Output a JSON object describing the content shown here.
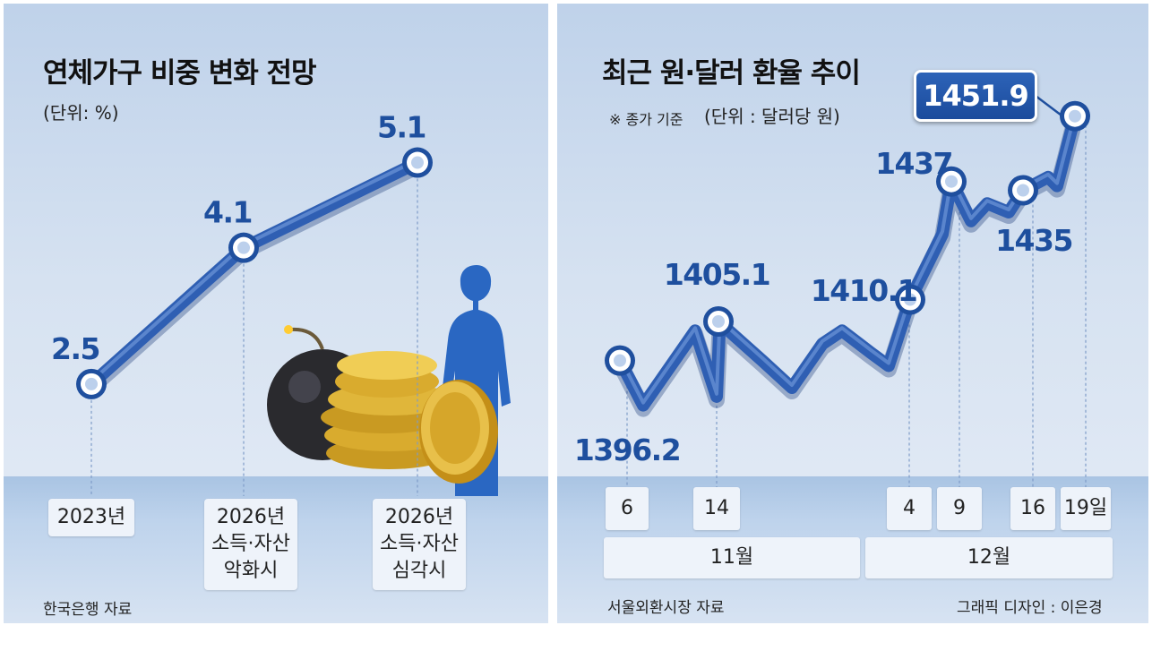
{
  "left": {
    "title": "연체가구 비중 변화 전망",
    "unit": "(단위: %)",
    "source": "한국은행 자료"
  },
  "right": {
    "title": "최근 원·달러 환율 추이",
    "note": "※ 종가 기준",
    "unit": "(단위 : 달러당 원)",
    "source": "서울외환시장 자료",
    "credit": "그래픽 디자인 : 이은경",
    "months": [
      "11월",
      "12월"
    ]
  },
  "chart_data": [
    {
      "type": "line",
      "title": "연체가구 비중 변화 전망",
      "ylabel": "%",
      "categories": [
        "2023년",
        "2026년\n소득·자산\n악화시",
        "2026년\n소득·자산\n심각시"
      ],
      "values": [
        2.5,
        4.1,
        5.1
      ],
      "value_labels": [
        "2.5",
        "4.1",
        "5.1"
      ],
      "ylim": [
        1.5,
        5.6
      ],
      "color": "#2f5fb3"
    },
    {
      "type": "line",
      "title": "최근 원·달러 환율 추이",
      "ylabel": "달러당 원",
      "x_ticks": [
        "6",
        "14",
        "4",
        "9",
        "16",
        "19일"
      ],
      "x_months": [
        "11월",
        "12월"
      ],
      "ylim": [
        1380,
        1460
      ],
      "series_approx": [
        1396.2,
        1386,
        1403,
        1388,
        1407,
        1405.1,
        1396,
        1390,
        1400,
        1403,
        1398,
        1395,
        1410.1,
        1425,
        1437,
        1428,
        1432,
        1430,
        1435,
        1438,
        1436,
        1451.9
      ],
      "labeled_points": [
        {
          "label": "1396.2",
          "value": 1396.2
        },
        {
          "label": "1405.1",
          "value": 1405.1
        },
        {
          "label": "1410.1",
          "value": 1410.1
        },
        {
          "label": "1437",
          "value": 1437
        },
        {
          "label": "1435",
          "value": 1435
        },
        {
          "label": "1451.9",
          "value": 1451.9
        }
      ],
      "color": "#2f5fb3"
    }
  ]
}
